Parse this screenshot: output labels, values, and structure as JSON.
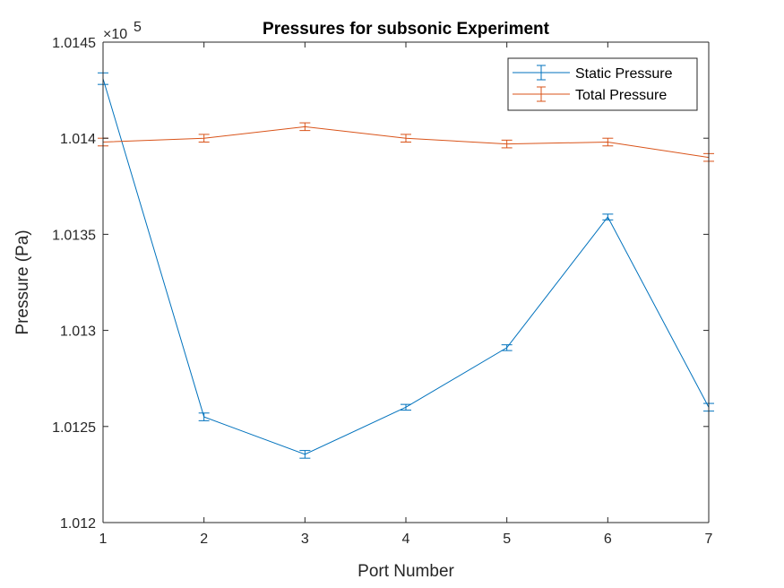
{
  "chart_data": {
    "type": "line",
    "title": "Pressures for subsonic Experiment",
    "xlabel": "Port Number",
    "ylabel": "Pressure (Pa)",
    "exponent_label": {
      "base": "×10",
      "power": "5"
    },
    "x": [
      1,
      2,
      3,
      4,
      5,
      6,
      7
    ],
    "xlim": [
      1,
      7
    ],
    "ylim": [
      1.012,
      1.0145
    ],
    "x_ticks": [
      1,
      2,
      3,
      4,
      5,
      6,
      7
    ],
    "x_tick_labels": [
      "1",
      "2",
      "3",
      "4",
      "5",
      "6",
      "7"
    ],
    "y_ticks": [
      1.012,
      1.0125,
      1.013,
      1.0135,
      1.014,
      1.0145
    ],
    "y_tick_labels": [
      "1.012",
      "1.0125",
      "1.013",
      "1.0135",
      "1.014",
      "1.0145"
    ],
    "grid": false,
    "legend_position": "top-right",
    "series": [
      {
        "name": "Static Pressure",
        "color": "#0072BD",
        "values": [
          1.01431,
          1.01255,
          1.012355,
          1.0126,
          1.01291,
          1.01359,
          1.0126
        ],
        "errors": [
          3e-05,
          2e-05,
          2e-05,
          1.5e-05,
          1.5e-05,
          1.5e-05,
          2e-05
        ]
      },
      {
        "name": "Total Pressure",
        "color": "#D95319",
        "values": [
          1.01398,
          1.014,
          1.01406,
          1.014,
          1.01397,
          1.01398,
          1.0139
        ],
        "errors": [
          2e-05,
          2e-05,
          2e-05,
          2e-05,
          2e-05,
          2e-05,
          2e-05
        ]
      }
    ]
  }
}
